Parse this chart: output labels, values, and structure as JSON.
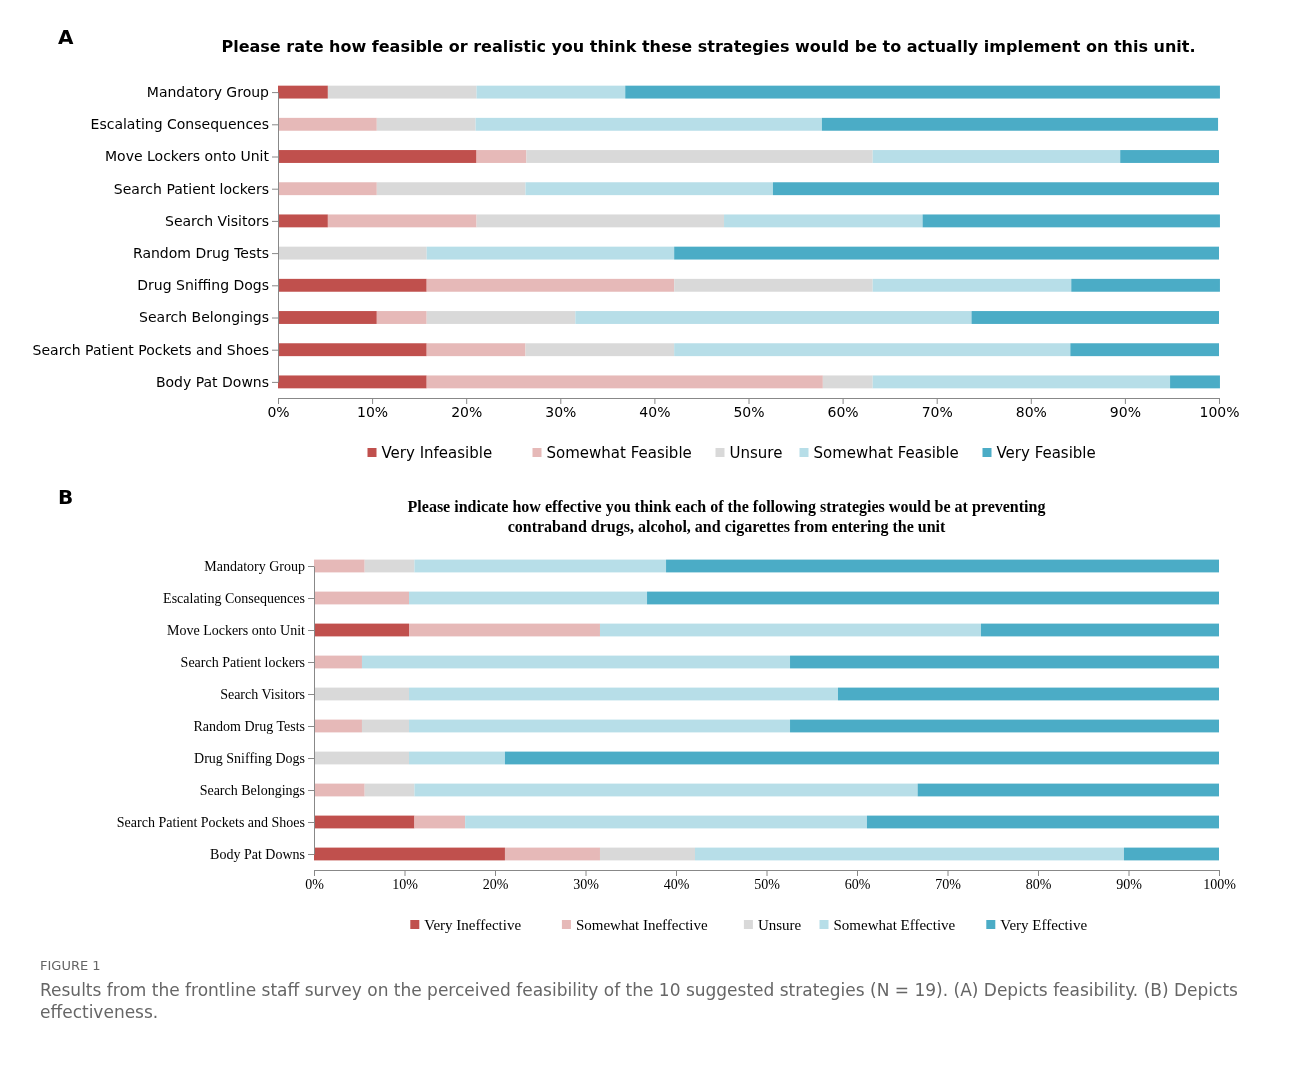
{
  "chart_data": [
    {
      "type": "bar",
      "orientation": "horizontal",
      "stacked": true,
      "title": "Please rate how feasible or realistic you think these strategies would be to actually implement on this unit.",
      "annotations": [
        "A"
      ],
      "categories": [
        "Mandatory Group",
        "Escalating Consequences",
        "Move Lockers onto Unit",
        "Search Patient lockers",
        "Search Visitors",
        "Random Drug Tests",
        "Drug Sniffing Dogs",
        "Search Belongings",
        "Search Patient Pockets and Shoes",
        "Body Pat Downs"
      ],
      "series": [
        {
          "name": "Very Infeasible",
          "color": "#c0504d",
          "values": [
            5.3,
            0,
            21.1,
            0,
            5.3,
            0,
            15.8,
            10.5,
            15.8,
            15.8
          ]
        },
        {
          "name": "Somewhat Feasible",
          "color": "#e6b9b8",
          "values": [
            0,
            10.5,
            5.3,
            10.5,
            15.8,
            0,
            26.3,
            5.3,
            10.5,
            42.1
          ]
        },
        {
          "name": "Unsure",
          "color": "#d9d9d9",
          "values": [
            15.8,
            10.5,
            36.8,
            15.8,
            26.3,
            15.8,
            21.1,
            15.8,
            15.8,
            5.3
          ]
        },
        {
          "name": "Somewhat Feasible",
          "color": "#b7dee8",
          "values": [
            15.8,
            36.8,
            26.3,
            26.3,
            21.1,
            26.3,
            21.1,
            42.1,
            42.1,
            31.6
          ]
        },
        {
          "name": "Very Feasible",
          "color": "#4bacc6",
          "values": [
            63.2,
            42.1,
            10.5,
            47.4,
            31.6,
            57.9,
            15.8,
            26.3,
            15.8,
            5.3
          ]
        }
      ],
      "xlim": [
        0,
        100
      ],
      "xticks": [
        {
          "value": 0,
          "label": "0%"
        },
        {
          "value": 10,
          "label": "10%"
        },
        {
          "value": 20,
          "label": "20%"
        },
        {
          "value": 30,
          "label": "30%"
        },
        {
          "value": 40,
          "label": "40%"
        },
        {
          "value": 50,
          "label": "50%"
        },
        {
          "value": 60,
          "label": "60%"
        },
        {
          "value": 70,
          "label": "70%"
        },
        {
          "value": 80,
          "label": "80%"
        },
        {
          "value": 90,
          "label": "90%"
        },
        {
          "value": 100,
          "label": "100%"
        }
      ],
      "grid": false,
      "legend": "bottom"
    },
    {
      "type": "bar",
      "orientation": "horizontal",
      "stacked": true,
      "title": "Please indicate how effective you think each of the following strategies would be at preventing contraband drugs, alcohol, and cigarettes from entering the unit",
      "annotations": [
        "B",
        "FIGURE 1",
        "Results from the frontline staff survey on the perceived feasibility of the 10 suggested strategies (N = 19). (A) Depicts feasibility. (B) Depicts effectiveness."
      ],
      "categories": [
        "Mandatory Group",
        "Escalating Consequences",
        "Move Lockers onto Unit",
        "Search Patient lockers",
        "Search Visitors",
        "Random Drug Tests",
        "Drug Sniffing Dogs",
        "Search Belongings",
        "Search Patient Pockets and Shoes",
        "Body Pat Downs"
      ],
      "series": [
        {
          "name": "Very Ineffective",
          "color": "#c0504d",
          "values": [
            0,
            0,
            10.5,
            0,
            0,
            0,
            0,
            0,
            11.1,
            21.1
          ]
        },
        {
          "name": "Somewhat Ineffective",
          "color": "#e6b9b8",
          "values": [
            5.6,
            10.5,
            21.1,
            5.3,
            0,
            5.3,
            0,
            5.6,
            5.6,
            10.5
          ]
        },
        {
          "name": "Unsure",
          "color": "#d9d9d9",
          "values": [
            5.5,
            0,
            0,
            0,
            10.5,
            5.2,
            10.5,
            5.5,
            0,
            10.5
          ]
        },
        {
          "name": "Somewhat Effective",
          "color": "#b7dee8",
          "values": [
            27.8,
            26.3,
            42.1,
            47.3,
            47.4,
            42.1,
            10.6,
            55.6,
            44.4,
            47.4
          ]
        },
        {
          "name": "Very Effective",
          "color": "#4bacc6",
          "values": [
            61.1,
            63.2,
            26.3,
            47.4,
            42.1,
            47.4,
            78.9,
            33.3,
            38.9,
            10.5
          ]
        }
      ],
      "xlim": [
        0,
        100
      ],
      "xticks": [
        {
          "value": 0,
          "label": "0%"
        },
        {
          "value": 10,
          "label": "10%"
        },
        {
          "value": 20,
          "label": "20%"
        },
        {
          "value": 30,
          "label": "30%"
        },
        {
          "value": 40,
          "label": "40%"
        },
        {
          "value": 50,
          "label": "50%"
        },
        {
          "value": 60,
          "label": "60%"
        },
        {
          "value": 70,
          "label": "70%"
        },
        {
          "value": 80,
          "label": "80%"
        },
        {
          "value": 90,
          "label": "90%"
        },
        {
          "value": 100,
          "label": "100%"
        }
      ],
      "grid": false,
      "legend": "bottom"
    }
  ]
}
